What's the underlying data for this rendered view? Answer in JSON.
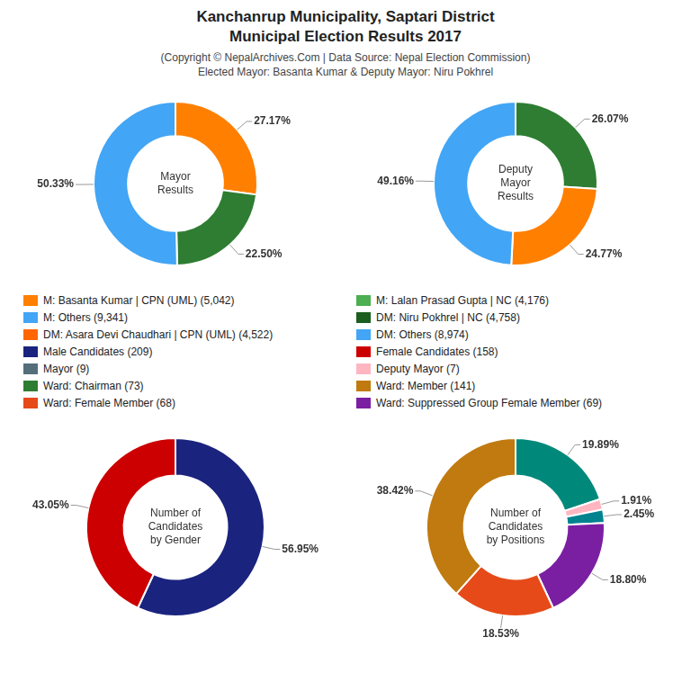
{
  "title": "Kanchanrup Municipality, Saptari District\nMunicipal Election Results 2017",
  "subtitle": "(Copyright © NepalArchives.Com | Data Source: Nepal Election Commission)\nElected Mayor: Basanta Kumar & Deputy Mayor: Niru Pokhrel",
  "legend_entries": [
    {
      "label": "M: Basanta Kumar | CPN (UML) (5,042)",
      "color": "#FF7F00"
    },
    {
      "label": "M: Others (9,341)",
      "color": "#42A5F5"
    },
    {
      "label": "DM: Asara Devi Chaudhari | CPN (UML) (4,522)",
      "color": "#FF6600"
    },
    {
      "label": "Male Candidates (209)",
      "color": "#1a237e"
    },
    {
      "label": "Mayor (9)",
      "color": "#546E7A"
    },
    {
      "label": "Ward: Chairman (73)",
      "color": "#2E7D32"
    },
    {
      "label": "Ward: Female Member (68)",
      "color": "#E64A19"
    },
    {
      "label": "M: Lalan Prasad Gupta | NC (4,176)",
      "color": "#4CAF50"
    },
    {
      "label": "DM: Niru Pokhrel | NC (4,758)",
      "color": "#1B5E20"
    },
    {
      "label": "DM: Others (8,974)",
      "color": "#42A5F5"
    },
    {
      "label": "Female Candidates (158)",
      "color": "#cc0000"
    },
    {
      "label": "Deputy Mayor (7)",
      "color": "#FFB6C1"
    },
    {
      "label": "Ward: Member (141)",
      "color": "#C07A10"
    },
    {
      "label": "Ward: Suppressed Group Female Member (69)",
      "color": "#7B1FA2"
    }
  ],
  "chart_data": [
    {
      "type": "doughnut",
      "title": "Mayor\nResults",
      "values": [
        27.17,
        22.5,
        50.33
      ],
      "colors": [
        "#FF7F00",
        "#2E7D32",
        "#42A5F5"
      ],
      "value_labels": [
        "27.17%",
        "22.50%",
        "50.33%"
      ],
      "data_labels": true
    },
    {
      "type": "doughnut",
      "title": "Deputy\nMayor\nResults",
      "values": [
        26.07,
        24.77,
        49.16
      ],
      "colors": [
        "#2E7D32",
        "#FF7F00",
        "#42A5F5"
      ],
      "value_labels": [
        "26.07%",
        "24.77%",
        "49.16%"
      ],
      "data_labels": true
    },
    {
      "type": "doughnut",
      "title": "Number of\nCandidates\nby Gender",
      "values": [
        56.95,
        43.05
      ],
      "colors": [
        "#1a237e",
        "#cc0000"
      ],
      "value_labels": [
        "56.95%",
        "43.05%"
      ],
      "data_labels": true
    },
    {
      "type": "doughnut",
      "title": "Number of\nCandidates\nby Positions",
      "values": [
        19.89,
        1.91,
        2.45,
        18.8,
        18.53,
        38.42
      ],
      "colors": [
        "#00897B",
        "#FFB6C1",
        "#00838F",
        "#7B1FA2",
        "#E64A19",
        "#C07A10"
      ],
      "value_labels": [
        "19.89%",
        "1.91%",
        "2.45%",
        "18.80%",
        "18.53%",
        "38.42%"
      ],
      "data_labels": true
    }
  ]
}
